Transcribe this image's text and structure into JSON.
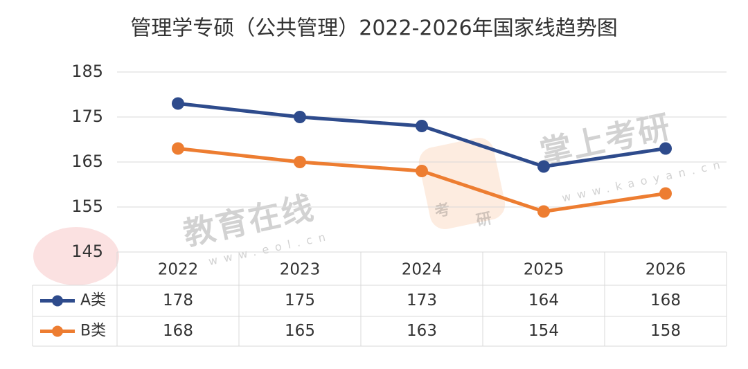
{
  "chart_data": {
    "type": "line",
    "title": "管理学专硕（公共管理）2022-2026年国家线趋势图",
    "categories": [
      "2022",
      "2023",
      "2024",
      "2025",
      "2026"
    ],
    "series": [
      {
        "name": "A类",
        "color": "#2e4b8c",
        "values": [
          178,
          175,
          173,
          164,
          168
        ]
      },
      {
        "name": "B类",
        "color": "#ed7d31",
        "values": [
          168,
          165,
          163,
          154,
          158
        ]
      }
    ],
    "ylim": [
      145,
      185
    ],
    "yticks": [
      145,
      155,
      165,
      175,
      185
    ],
    "grid": true,
    "data_table": true,
    "watermarks": [
      "教育在线",
      "www.eol.cn",
      "掌上考研",
      "www.kaoyan.cn",
      "考",
      "研"
    ]
  }
}
